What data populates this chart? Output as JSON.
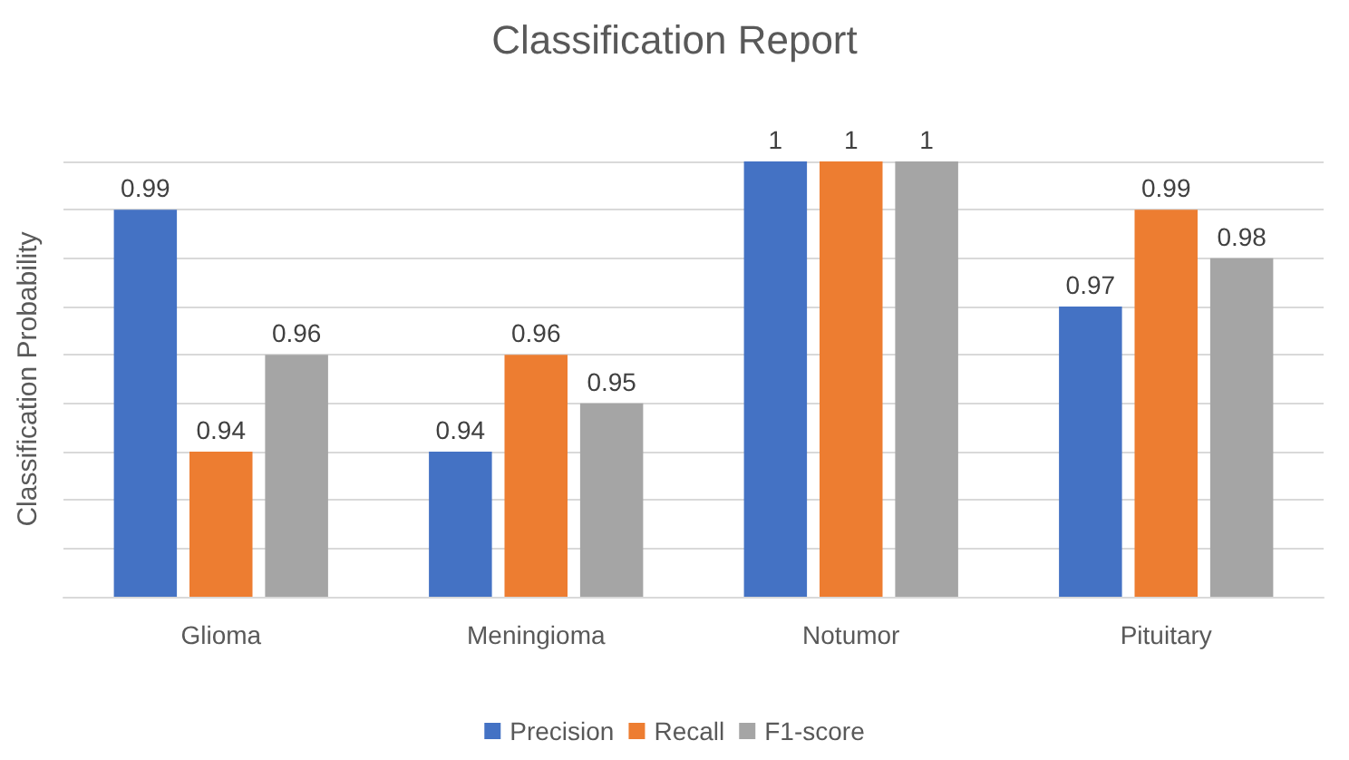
{
  "chart_data": {
    "type": "bar",
    "title": "Classification Report",
    "ylabel": "Classification Probability",
    "categories": [
      "Glioma",
      "Meningioma",
      "Notumor",
      "Pituitary"
    ],
    "series": [
      {
        "name": "Precision",
        "color": "#4472c4",
        "values": [
          0.99,
          0.94,
          1,
          0.97
        ]
      },
      {
        "name": "Recall",
        "color": "#ed7d31",
        "values": [
          0.94,
          0.96,
          1,
          0.99
        ]
      },
      {
        "name": "F1-score",
        "color": "#a5a5a5",
        "values": [
          0.96,
          0.95,
          1,
          0.98
        ]
      }
    ],
    "ylim": [
      0.91,
      1
    ],
    "yticks": [
      {
        "value": 0.91,
        "label": null
      },
      {
        "value": 0.92,
        "label": null
      },
      {
        "value": 0.93,
        "label": null
      },
      {
        "value": 0.94,
        "label": null
      },
      {
        "value": 0.95,
        "label": null
      },
      {
        "value": 0.96,
        "label": null
      },
      {
        "value": 0.97,
        "label": null
      },
      {
        "value": 0.98,
        "label": null
      },
      {
        "value": 0.99,
        "label": null
      },
      {
        "value": 1,
        "label": null
      }
    ],
    "tick_labels": "x",
    "grid": "y",
    "legend": "bottom",
    "data_labels": true
  }
}
